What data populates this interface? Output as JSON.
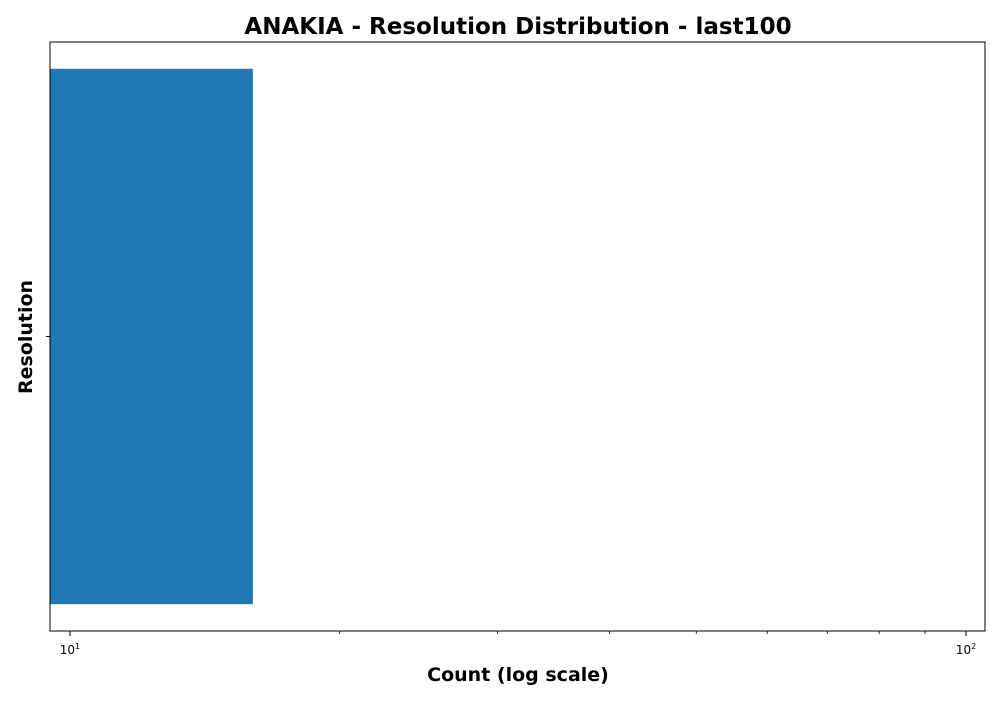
{
  "chart_data": {
    "type": "bar",
    "orientation": "horizontal",
    "title": "ANAKIA - Resolution Distribution - last100",
    "xlabel": "Count (log scale)",
    "ylabel": "Resolution",
    "xscale": "log",
    "xlim": [
      9.5,
      105
    ],
    "categories": [
      ""
    ],
    "values": [
      16
    ],
    "bar_color": "#1f77b4",
    "xticks": [
      {
        "value": 10,
        "base": "10",
        "exp": "1"
      },
      {
        "value": 100,
        "base": "10",
        "exp": "2"
      }
    ],
    "grid": false,
    "legend": "none"
  }
}
